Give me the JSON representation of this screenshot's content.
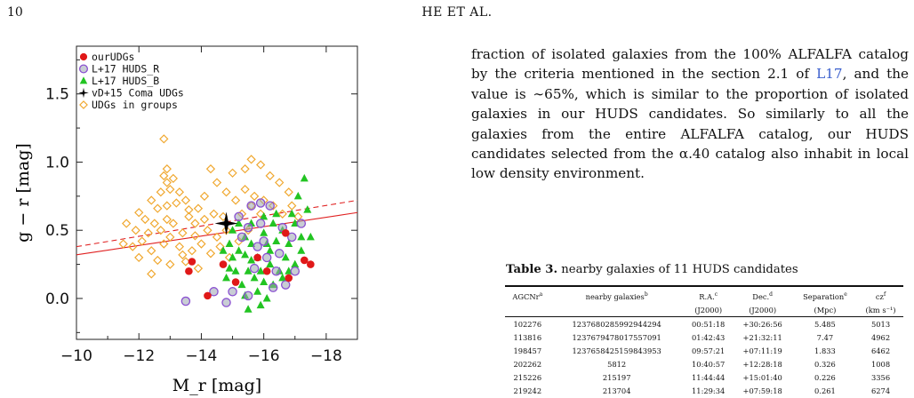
{
  "header": {
    "page_number": "10",
    "running_head": "HE ET AL."
  },
  "figure": {
    "chart_data": {
      "type": "scatter",
      "xlabel": "M_r [mag]",
      "ylabel": "g − r [mag]",
      "xlim": [
        -10,
        -19
      ],
      "ylim": [
        -0.3,
        1.85
      ],
      "xticks": [
        -10,
        -12,
        -14,
        -16,
        -18
      ],
      "yticks": [
        0.0,
        0.5,
        1.0,
        1.5
      ],
      "legend_position": "top-left",
      "legend": [
        "ourUDGs",
        "L+17 HUDS_R",
        "L+17 HUDS_B",
        "vD+15 Coma UDGs",
        "UDGs in groups"
      ],
      "series": [
        {
          "name": "UDGs in groups",
          "marker": "diamond-open",
          "color": "#f0a830",
          "points": [
            [
              -12.8,
              1.17
            ],
            [
              -12.9,
              0.95
            ],
            [
              -12.8,
              0.9
            ],
            [
              -12.9,
              0.85
            ],
            [
              -13.1,
              0.88
            ],
            [
              -13.0,
              0.8
            ],
            [
              -13.3,
              0.78
            ],
            [
              -12.7,
              0.78
            ],
            [
              -12.4,
              0.72
            ],
            [
              -12.6,
              0.66
            ],
            [
              -12.9,
              0.68
            ],
            [
              -13.2,
              0.7
            ],
            [
              -13.5,
              0.72
            ],
            [
              -13.6,
              0.65
            ],
            [
              -13.9,
              0.66
            ],
            [
              -12.0,
              0.63
            ],
            [
              -12.2,
              0.58
            ],
            [
              -12.5,
              0.55
            ],
            [
              -12.9,
              0.58
            ],
            [
              -13.1,
              0.55
            ],
            [
              -13.6,
              0.6
            ],
            [
              -13.8,
              0.55
            ],
            [
              -14.1,
              0.58
            ],
            [
              -14.4,
              0.62
            ],
            [
              -14.7,
              0.6
            ],
            [
              -11.6,
              0.55
            ],
            [
              -11.9,
              0.5
            ],
            [
              -12.3,
              0.48
            ],
            [
              -12.7,
              0.5
            ],
            [
              -13.0,
              0.45
            ],
            [
              -13.4,
              0.48
            ],
            [
              -13.8,
              0.46
            ],
            [
              -14.2,
              0.5
            ],
            [
              -14.5,
              0.45
            ],
            [
              -11.5,
              0.4
            ],
            [
              -11.8,
              0.38
            ],
            [
              -12.1,
              0.42
            ],
            [
              -12.4,
              0.35
            ],
            [
              -12.8,
              0.4
            ],
            [
              -13.3,
              0.38
            ],
            [
              -13.7,
              0.35
            ],
            [
              -14.0,
              0.4
            ],
            [
              -14.3,
              0.33
            ],
            [
              -14.6,
              0.38
            ],
            [
              -12.0,
              0.3
            ],
            [
              -12.6,
              0.28
            ],
            [
              -13.0,
              0.25
            ],
            [
              -13.5,
              0.27
            ],
            [
              -12.4,
              0.18
            ],
            [
              -13.9,
              0.22
            ],
            [
              -14.1,
              0.75
            ],
            [
              -14.5,
              0.85
            ],
            [
              -15.0,
              0.92
            ],
            [
              -15.4,
              0.8
            ],
            [
              -15.7,
              0.75
            ],
            [
              -15.4,
              0.95
            ],
            [
              -15.9,
              0.98
            ],
            [
              -16.2,
              0.9
            ],
            [
              -16.5,
              0.85
            ],
            [
              -16.8,
              0.78
            ],
            [
              -16.0,
              0.72
            ],
            [
              -15.6,
              0.68
            ],
            [
              -16.3,
              0.68
            ],
            [
              -15.1,
              0.72
            ],
            [
              -14.3,
              0.95
            ],
            [
              -14.8,
              0.78
            ],
            [
              -15.3,
              0.62
            ],
            [
              -15.9,
              0.62
            ],
            [
              -16.6,
              0.62
            ],
            [
              -16.9,
              0.68
            ],
            [
              -15.6,
              1.02
            ],
            [
              -13.4,
              0.32
            ],
            [
              -14.8,
              0.5
            ],
            [
              -14.9,
              0.3
            ],
            [
              -15.2,
              0.42
            ],
            [
              -17.1,
              0.6
            ],
            [
              -15.5,
              0.5
            ]
          ]
        },
        {
          "name": "L+17 HUDS_B",
          "marker": "triangle",
          "color": "#22c422",
          "points": [
            [
              -15.0,
              0.3
            ],
            [
              -15.2,
              0.35
            ],
            [
              -15.4,
              0.45
            ],
            [
              -15.6,
              0.4
            ],
            [
              -15.8,
              0.3
            ],
            [
              -16.0,
              0.48
            ],
            [
              -16.2,
              0.35
            ],
            [
              -16.4,
              0.42
            ],
            [
              -16.6,
              0.5
            ],
            [
              -16.8,
              0.4
            ],
            [
              -17.0,
              0.55
            ],
            [
              -17.2,
              0.45
            ],
            [
              -17.4,
              0.65
            ],
            [
              -17.3,
              0.88
            ],
            [
              -17.1,
              0.75
            ],
            [
              -16.9,
              0.62
            ],
            [
              -16.7,
              0.3
            ],
            [
              -16.5,
              0.2
            ],
            [
              -16.3,
              0.1
            ],
            [
              -16.1,
              0.0
            ],
            [
              -15.9,
              -0.05
            ],
            [
              -15.7,
              0.15
            ],
            [
              -15.5,
              0.2
            ],
            [
              -15.3,
              0.1
            ],
            [
              -15.1,
              0.2
            ],
            [
              -14.9,
              0.4
            ],
            [
              -14.8,
              0.15
            ],
            [
              -15.6,
              0.55
            ],
            [
              -16.0,
              0.6
            ],
            [
              -16.4,
              0.62
            ],
            [
              -16.2,
              0.25
            ],
            [
              -15.8,
              0.05
            ],
            [
              -15.4,
              0.02
            ],
            [
              -15.9,
              0.2
            ],
            [
              -16.6,
              0.15
            ],
            [
              -17.0,
              0.25
            ],
            [
              -17.2,
              0.35
            ],
            [
              -17.5,
              0.45
            ],
            [
              -15.2,
              0.55
            ],
            [
              -15.0,
              0.5
            ],
            [
              -14.7,
              0.35
            ],
            [
              -16.1,
              0.4
            ],
            [
              -16.3,
              0.55
            ],
            [
              -16.8,
              0.2
            ],
            [
              -15.6,
              0.28
            ],
            [
              -15.4,
              0.32
            ],
            [
              -14.9,
              0.22
            ],
            [
              -15.5,
              -0.08
            ],
            [
              -16.0,
              0.12
            ]
          ]
        },
        {
          "name": "L+17 HUDS_R",
          "marker": "circle-open",
          "color": "#8a4fd1",
          "points": [
            [
              -15.2,
              0.6
            ],
            [
              -15.5,
              0.52
            ],
            [
              -15.8,
              0.38
            ],
            [
              -16.1,
              0.3
            ],
            [
              -16.4,
              0.2
            ],
            [
              -16.7,
              0.1
            ],
            [
              -15.9,
              0.55
            ],
            [
              -16.2,
              0.68
            ],
            [
              -16.6,
              0.52
            ],
            [
              -15.3,
              0.45
            ],
            [
              -15.7,
              0.22
            ],
            [
              -15.0,
              0.05
            ],
            [
              -14.8,
              -0.03
            ],
            [
              -15.5,
              0.02
            ],
            [
              -16.0,
              0.42
            ],
            [
              -16.5,
              0.33
            ],
            [
              -16.9,
              0.45
            ],
            [
              -17.2,
              0.55
            ],
            [
              -15.6,
              0.68
            ],
            [
              -14.4,
              0.05
            ],
            [
              -13.5,
              -0.02
            ],
            [
              -15.9,
              0.7
            ],
            [
              -16.3,
              0.08
            ],
            [
              -17.0,
              0.2
            ]
          ]
        },
        {
          "name": "ourUDGs",
          "marker": "circle",
          "color": "#e01818",
          "points": [
            [
              -13.6,
              0.2
            ],
            [
              -13.7,
              0.27
            ],
            [
              -14.2,
              0.02
            ],
            [
              -14.7,
              0.25
            ],
            [
              -15.1,
              0.12
            ],
            [
              -15.8,
              0.3
            ],
            [
              -16.1,
              0.2
            ],
            [
              -16.8,
              0.15
            ],
            [
              -17.3,
              0.28
            ],
            [
              -17.5,
              0.25
            ],
            [
              -16.7,
              0.48
            ]
          ]
        },
        {
          "name": "vD+15 Coma UDGs",
          "marker": "star",
          "color": "#000000",
          "points": [
            [
              -14.8,
              0.55
            ]
          ]
        }
      ],
      "lines": [
        {
          "style": "solid",
          "color": "#e02020",
          "x": [
            -10,
            -19
          ],
          "y": [
            0.32,
            0.63
          ]
        },
        {
          "style": "dashed",
          "color": "#e02020",
          "x": [
            -10,
            -19
          ],
          "y": [
            0.38,
            0.72
          ]
        }
      ]
    }
  },
  "body": {
    "p1": "fraction of isolated galaxies from the 100% ALFALFA catalog by the criteria mentioned in the section 2.1 of ",
    "cite": "L17",
    "p2": ", and the value is ∼65%, which is similar to the proportion of isolated galaxies in our HUDS candidates. So similarly to all the galaxies from the entire ALFALFA catalog, our HUDS candidates selected from the α.40 catalog also inhabit in local low density environment."
  },
  "table": {
    "caption_label": "Table 3.",
    "caption_text": "nearby galaxies of 11 HUDS candidates",
    "headers": [
      {
        "text": "AGCNr",
        "sup": "a"
      },
      {
        "text": "nearby galaxies",
        "sup": "b"
      },
      {
        "text": "R.A.",
        "sup": "c"
      },
      {
        "text": "Dec.",
        "sup": "d"
      },
      {
        "text": "Separation",
        "sup": "e"
      },
      {
        "text": "cz",
        "sup": "f"
      }
    ],
    "units": [
      "",
      "",
      "(J2000)",
      "(J2000)",
      "(Mpc)",
      "(km s⁻¹)"
    ],
    "rows": [
      [
        "102276",
        "1237680285992944294",
        "00:51:18",
        "+30:26:56",
        "5.485",
        "5013"
      ],
      [
        "113816",
        "1237679478017557091",
        "01:42:43",
        "+21:32:11",
        "7.47",
        "4962"
      ],
      [
        "198457",
        "1237658425159843953",
        "09:57:21",
        "+07:11:19",
        "1.833",
        "6462"
      ],
      [
        "202262",
        "5812",
        "10:40:57",
        "+12:28:18",
        "0.326",
        "1008"
      ],
      [
        "215226",
        "215197",
        "11:44:44",
        "+15:01:40",
        "0.226",
        "3356"
      ],
      [
        "219242",
        "213704",
        "11:29:34",
        "+07:59:18",
        "0.261",
        "6274"
      ]
    ]
  }
}
